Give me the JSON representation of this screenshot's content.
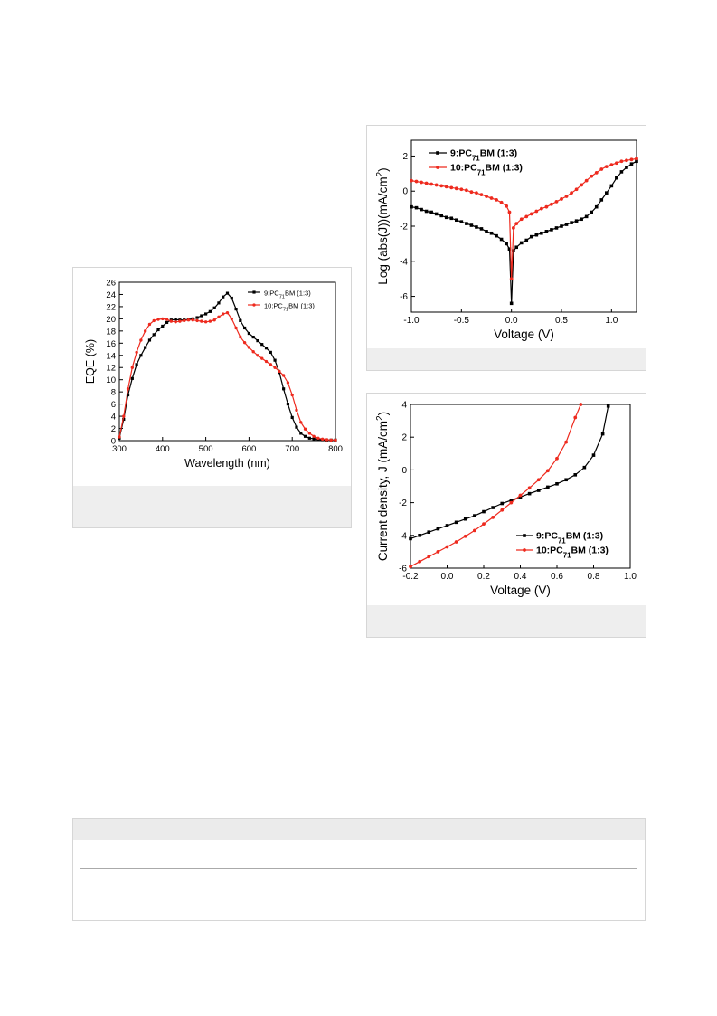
{
  "charts": {
    "eqe": {
      "type": "line",
      "xlabel": "Wavelength (nm)",
      "ylabel": "EQE (%)",
      "xlim": [
        300,
        800
      ],
      "ylim": [
        0,
        26
      ],
      "xticks": [
        "300",
        "400",
        "500",
        "600",
        "700",
        "800"
      ],
      "yticks": [
        "0",
        "2",
        "4",
        "6",
        "8",
        "10",
        "12",
        "14",
        "16",
        "18",
        "20",
        "22",
        "24",
        "26"
      ],
      "legend_position": "top-right",
      "legend": [
        {
          "pre": "9:PC",
          "sub": "71",
          "post": "BM (1:3)"
        },
        {
          "pre": "10:PC",
          "sub": "71",
          "post": "BM (1:3)"
        }
      ]
    },
    "log_jv": {
      "type": "line",
      "xlabel": "Voltage (V)",
      "ylabel_pre": "Log (abs(J))(mA/cm",
      "ylabel_sup": "2",
      "ylabel_post": ")",
      "xlim": [
        -1.0,
        1.25
      ],
      "ylim": [
        -6.9,
        2.9
      ],
      "xticks": [
        "-1.0",
        "-0.5",
        "0.0",
        "0.5",
        "1.0"
      ],
      "yticks": [
        "-6",
        "-4",
        "-2",
        "0",
        "2"
      ],
      "legend_position": "top-left",
      "legend": [
        {
          "pre": "9:PC",
          "sub": "71",
          "post": "BM (1:3)"
        },
        {
          "pre": "10:PC",
          "sub": "71",
          "post": "BM (1:3)"
        }
      ]
    },
    "jv": {
      "type": "line",
      "xlabel": "Voltage (V)",
      "ylabel_pre": "Current density, J (mA/cm",
      "ylabel_sup": "2",
      "ylabel_post": ")",
      "xlim": [
        -0.2,
        1.0
      ],
      "ylim": [
        -6,
        4
      ],
      "xticks": [
        "-0.2",
        "0.0",
        "0.2",
        "0.4",
        "0.6",
        "0.8",
        "1.0"
      ],
      "yticks": [
        "-6",
        "-4",
        "-2",
        "0",
        "2",
        "4"
      ],
      "legend_position": "bottom-right",
      "legend": [
        {
          "pre": "9:PC",
          "sub": "71",
          "post": "BM (1:3)"
        },
        {
          "pre": "10:PC",
          "sub": "71",
          "post": "BM (1:3)"
        }
      ]
    }
  },
  "chart_data": [
    {
      "type": "line",
      "xlabel": "Wavelength (nm)",
      "ylabel": "EQE (%)",
      "xlim": [
        300,
        800
      ],
      "ylim": [
        0,
        26
      ],
      "series": [
        {
          "name": "9:PC71BM (1:3)",
          "color": "#000000",
          "x": [
            300,
            310,
            320,
            330,
            340,
            350,
            360,
            370,
            380,
            390,
            400,
            410,
            420,
            430,
            440,
            450,
            460,
            470,
            480,
            490,
            500,
            510,
            520,
            530,
            540,
            550,
            560,
            570,
            580,
            590,
            600,
            610,
            620,
            630,
            640,
            650,
            660,
            670,
            680,
            690,
            700,
            710,
            720,
            730,
            740,
            750,
            760,
            770,
            780,
            790,
            800
          ],
          "y": [
            0.4,
            3.5,
            7.5,
            10.2,
            12.5,
            14,
            15.3,
            16.5,
            17.4,
            18.2,
            18.8,
            19.4,
            19.8,
            19.9,
            19.8,
            19.8,
            19.9,
            20,
            20.2,
            20.5,
            20.8,
            21.2,
            21.8,
            22.6,
            23.6,
            24.2,
            23.4,
            21.6,
            19.7,
            18.5,
            17.6,
            17,
            16.4,
            15.8,
            15.2,
            14.5,
            13.2,
            11.2,
            8.5,
            6,
            3.8,
            2.2,
            1.2,
            0.7,
            0.4,
            0.3,
            0.2,
            0.15,
            0.1,
            0.1,
            0.1
          ]
        },
        {
          "name": "10:PC71BM (1:3)",
          "color": "#ee2a1e",
          "x": [
            300,
            310,
            320,
            330,
            340,
            350,
            360,
            370,
            380,
            390,
            400,
            410,
            420,
            430,
            440,
            450,
            460,
            470,
            480,
            490,
            500,
            510,
            520,
            530,
            540,
            550,
            560,
            570,
            580,
            590,
            600,
            610,
            620,
            630,
            640,
            650,
            660,
            670,
            680,
            690,
            700,
            710,
            720,
            730,
            740,
            750,
            760,
            770,
            780,
            790,
            800
          ],
          "y": [
            0.6,
            4,
            8.5,
            12,
            14.5,
            16.5,
            18,
            19.1,
            19.7,
            19.9,
            20,
            19.9,
            19.6,
            19.5,
            19.6,
            19.7,
            19.8,
            19.8,
            19.7,
            19.6,
            19.5,
            19.6,
            19.8,
            20.3,
            20.8,
            21,
            20,
            18.5,
            17,
            16.1,
            15.3,
            14.6,
            14,
            13.5,
            13,
            12.5,
            12,
            11.4,
            10.7,
            9.5,
            7.5,
            5,
            3,
            1.9,
            1.2,
            0.7,
            0.4,
            0.25,
            0.15,
            0.1,
            0.1
          ]
        }
      ]
    },
    {
      "type": "line",
      "xlabel": "Voltage (V)",
      "ylabel": "Log (abs(J))(mA/cm2)",
      "xlim": [
        -1.0,
        1.25
      ],
      "ylim": [
        -6.9,
        2.9
      ],
      "series": [
        {
          "name": "9:PC71BM (1:3)",
          "color": "#000000",
          "x": [
            -1.0,
            -0.95,
            -0.9,
            -0.85,
            -0.8,
            -0.75,
            -0.7,
            -0.65,
            -0.6,
            -0.55,
            -0.5,
            -0.45,
            -0.4,
            -0.35,
            -0.3,
            -0.25,
            -0.2,
            -0.15,
            -0.1,
            -0.05,
            -0.02,
            0.0,
            0.02,
            0.05,
            0.1,
            0.15,
            0.2,
            0.25,
            0.3,
            0.35,
            0.4,
            0.45,
            0.5,
            0.55,
            0.6,
            0.65,
            0.7,
            0.75,
            0.8,
            0.85,
            0.9,
            0.95,
            1.0,
            1.05,
            1.1,
            1.15,
            1.2,
            1.25
          ],
          "y": [
            -0.9,
            -0.95,
            -1.05,
            -1.15,
            -1.2,
            -1.3,
            -1.4,
            -1.5,
            -1.55,
            -1.65,
            -1.75,
            -1.85,
            -1.95,
            -2.05,
            -2.15,
            -2.3,
            -2.4,
            -2.55,
            -2.75,
            -3.0,
            -3.3,
            -6.4,
            -3.4,
            -3.2,
            -2.95,
            -2.8,
            -2.6,
            -2.5,
            -2.4,
            -2.3,
            -2.2,
            -2.1,
            -2.0,
            -1.9,
            -1.8,
            -1.7,
            -1.6,
            -1.45,
            -1.2,
            -0.9,
            -0.5,
            -0.1,
            0.3,
            0.75,
            1.1,
            1.35,
            1.55,
            1.7
          ]
        },
        {
          "name": "10:PC71BM (1:3)",
          "color": "#ee2a1e",
          "x": [
            -1.0,
            -0.95,
            -0.9,
            -0.85,
            -0.8,
            -0.75,
            -0.7,
            -0.65,
            -0.6,
            -0.55,
            -0.5,
            -0.45,
            -0.4,
            -0.35,
            -0.3,
            -0.25,
            -0.2,
            -0.15,
            -0.1,
            -0.05,
            -0.02,
            0.0,
            0.02,
            0.05,
            0.1,
            0.15,
            0.2,
            0.25,
            0.3,
            0.35,
            0.4,
            0.45,
            0.5,
            0.55,
            0.6,
            0.65,
            0.7,
            0.75,
            0.8,
            0.85,
            0.9,
            0.95,
            1.0,
            1.05,
            1.1,
            1.15,
            1.2,
            1.25
          ],
          "y": [
            0.6,
            0.55,
            0.5,
            0.45,
            0.4,
            0.35,
            0.3,
            0.25,
            0.2,
            0.15,
            0.1,
            0.05,
            -0.05,
            -0.1,
            -0.2,
            -0.3,
            -0.4,
            -0.5,
            -0.65,
            -0.85,
            -1.2,
            -5.0,
            -2.1,
            -1.85,
            -1.6,
            -1.45,
            -1.3,
            -1.15,
            -1.0,
            -0.9,
            -0.75,
            -0.6,
            -0.45,
            -0.3,
            -0.1,
            0.1,
            0.35,
            0.6,
            0.85,
            1.05,
            1.25,
            1.4,
            1.5,
            1.6,
            1.7,
            1.75,
            1.8,
            1.85
          ]
        }
      ]
    },
    {
      "type": "line",
      "xlabel": "Voltage (V)",
      "ylabel": "Current density, J (mA/cm2)",
      "xlim": [
        -0.2,
        1.0
      ],
      "ylim": [
        -6,
        4
      ],
      "series": [
        {
          "name": "9:PC71BM (1:3)",
          "color": "#000000",
          "x": [
            -0.2,
            -0.15,
            -0.1,
            -0.05,
            0.0,
            0.05,
            0.1,
            0.15,
            0.2,
            0.25,
            0.3,
            0.35,
            0.4,
            0.45,
            0.5,
            0.55,
            0.6,
            0.65,
            0.7,
            0.75,
            0.8,
            0.85,
            0.88
          ],
          "y": [
            -4.2,
            -4.0,
            -3.8,
            -3.6,
            -3.4,
            -3.2,
            -3.0,
            -2.8,
            -2.55,
            -2.3,
            -2.05,
            -1.85,
            -1.65,
            -1.45,
            -1.25,
            -1.05,
            -0.85,
            -0.6,
            -0.3,
            0.15,
            0.9,
            2.2,
            3.9
          ]
        },
        {
          "name": "10:PC71BM (1:3)",
          "color": "#ee2a1e",
          "x": [
            -0.2,
            -0.15,
            -0.1,
            -0.05,
            0.0,
            0.05,
            0.1,
            0.15,
            0.2,
            0.25,
            0.3,
            0.35,
            0.4,
            0.45,
            0.5,
            0.55,
            0.6,
            0.65,
            0.7,
            0.73
          ],
          "y": [
            -5.9,
            -5.6,
            -5.3,
            -5.0,
            -4.7,
            -4.4,
            -4.05,
            -3.7,
            -3.3,
            -2.9,
            -2.45,
            -2.0,
            -1.55,
            -1.1,
            -0.6,
            -0.05,
            0.7,
            1.7,
            3.2,
            4.0
          ]
        }
      ]
    }
  ]
}
